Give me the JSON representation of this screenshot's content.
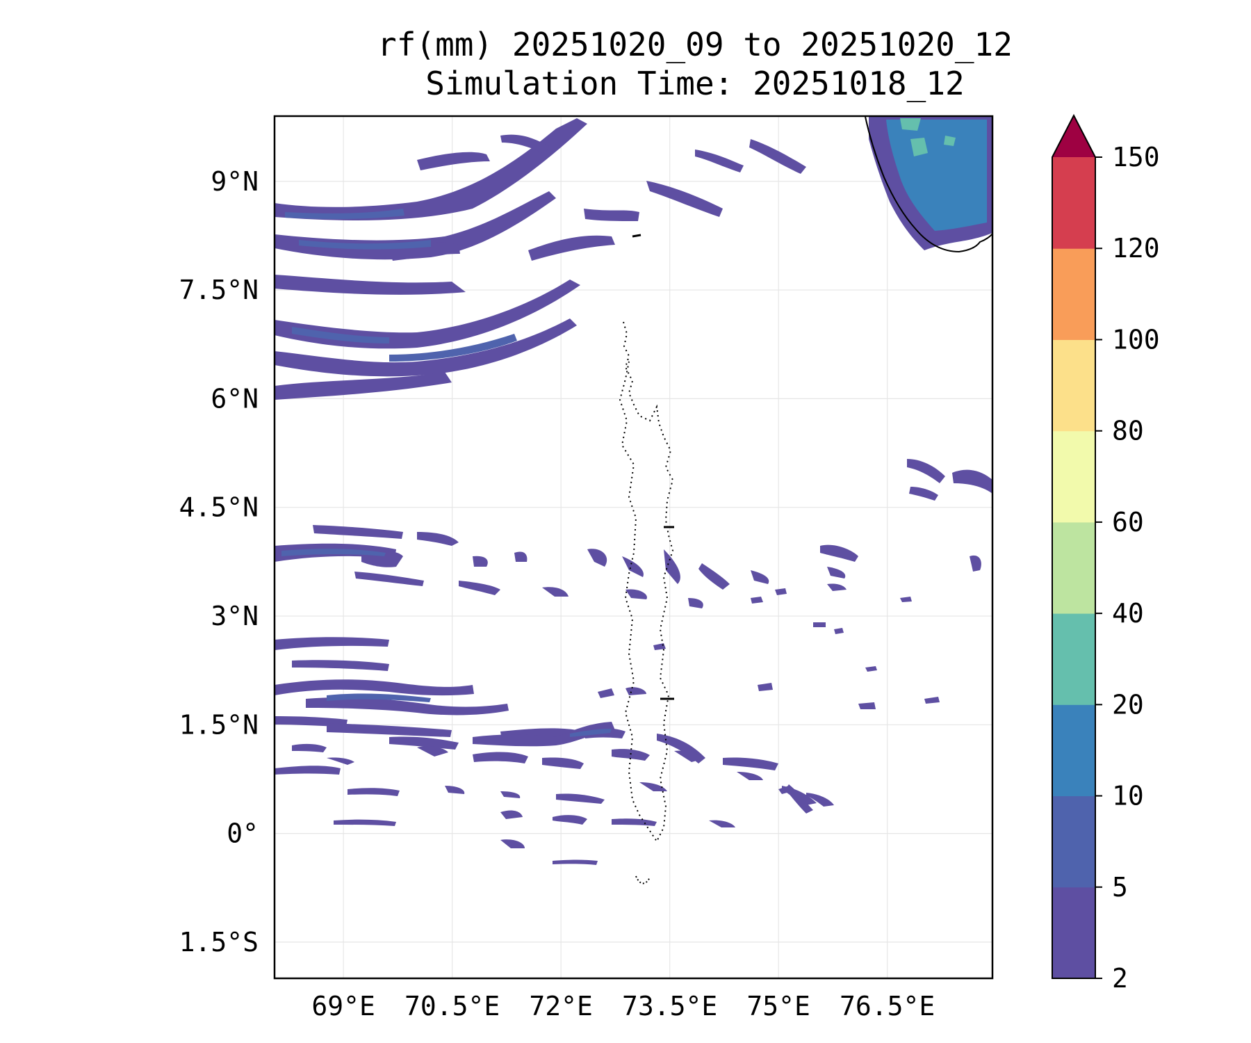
{
  "title": {
    "line1": "rf(mm) 20251020_09 to 20251020_12",
    "line2": "Simulation Time: 20251018_12"
  },
  "map": {
    "lon_range": [
      68.05,
      77.95
    ],
    "lat_range": [
      -2.0,
      9.9
    ],
    "x_ticks": [
      {
        "value": 69.0,
        "label": "69°E"
      },
      {
        "value": 70.5,
        "label": "70.5°E"
      },
      {
        "value": 72.0,
        "label": "72°E"
      },
      {
        "value": 73.5,
        "label": "73.5°E"
      },
      {
        "value": 75.0,
        "label": "75°E"
      },
      {
        "value": 76.5,
        "label": "76.5°E"
      }
    ],
    "y_ticks": [
      {
        "value": 9.0,
        "label": "9°N"
      },
      {
        "value": 7.5,
        "label": "7.5°N"
      },
      {
        "value": 6.0,
        "label": "6°N"
      },
      {
        "value": 4.5,
        "label": "4.5°N"
      },
      {
        "value": 3.0,
        "label": "3°N"
      },
      {
        "value": 1.5,
        "label": "1.5°N"
      },
      {
        "value": 0.0,
        "label": "0°"
      },
      {
        "value": -1.5,
        "label": "1.5°S"
      }
    ],
    "gridlines": true,
    "rain_colors": {
      "2-5": "#5e4fa2",
      "5-10": "#4f63ad",
      "10-20": "#3a82bb",
      "20-40": "#65bfad"
    }
  },
  "colorbar": {
    "levels": [
      "2",
      "5",
      "10",
      "20",
      "40",
      "60",
      "80",
      "100",
      "120",
      "150"
    ],
    "colors": [
      "#5e4fa2",
      "#4f63ad",
      "#3a82bb",
      "#65bfad",
      "#bde4a0",
      "#f2faac",
      "#fce08a",
      "#f99d59",
      "#d53e4f"
    ],
    "extend_color": "#9e0142"
  }
}
